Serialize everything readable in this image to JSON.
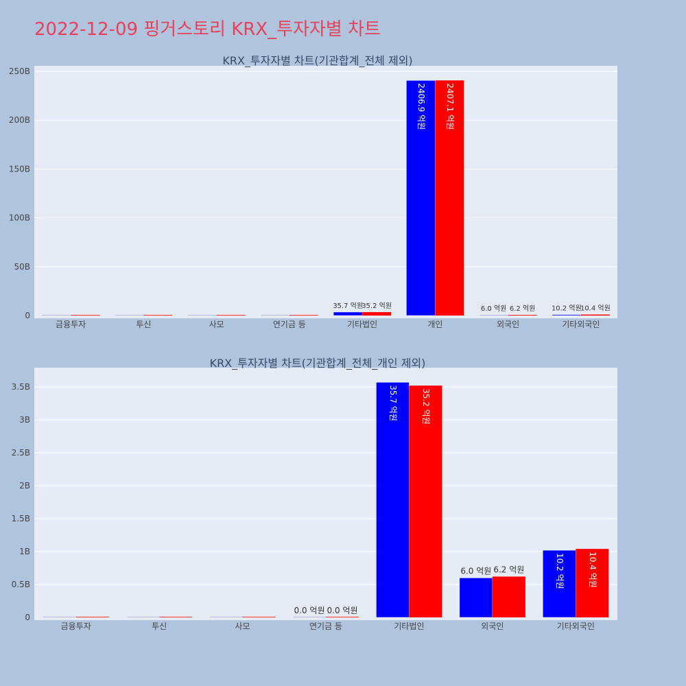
{
  "title": "2022-12-09 핑거스토리 KRX_투자자별 차트",
  "colors": {
    "background": "#b0c4de",
    "plot_bg": "#e5ecf6",
    "sell": "#0000ff",
    "buy": "#ff0000",
    "title": "#e8425a"
  },
  "chart_data": [
    {
      "type": "bar",
      "title": "KRX_투자자별 차트(기관합계_전체 제외)",
      "categories": [
        "금융투자",
        "투신",
        "사모",
        "연기금 등",
        "기타법인",
        "개인",
        "외국인",
        "기타외국인"
      ],
      "ylim": [
        0,
        250
      ],
      "y_unit": "B",
      "yticks": [
        "0",
        "50B",
        "100B",
        "150B",
        "200B",
        "250B"
      ],
      "grid": true,
      "series": [
        {
          "color": "#0000ff",
          "values": [
            0,
            0,
            0,
            0.001,
            3.57,
            240.69,
            0.6,
            1.02
          ],
          "labels": [
            "",
            "",
            "",
            "",
            "35.7 억원",
            "2406.9 억원",
            "6.0 억원",
            "10.2 억원"
          ]
        },
        {
          "color": "#ff0000",
          "values": [
            0,
            0,
            0,
            0.001,
            3.52,
            240.71,
            0.62,
            1.04
          ],
          "labels": [
            "",
            "",
            "",
            "",
            "35.2 억원",
            "2407.1 억원",
            "6.2 억원",
            "10.4 억원"
          ]
        }
      ]
    },
    {
      "type": "bar",
      "title": "KRX_투자자별 차트(기관합계_전체_개인 제외)",
      "categories": [
        "금융투자",
        "투신",
        "사모",
        "연기금 등",
        "기타법인",
        "외국인",
        "기타외국인"
      ],
      "ylim": [
        0,
        3.5
      ],
      "y_unit": "B",
      "yticks": [
        "0",
        "0.5B",
        "1B",
        "1.5B",
        "2B",
        "2.5B",
        "3B",
        "3.5B"
      ],
      "grid": true,
      "series": [
        {
          "color": "#0000ff",
          "values": [
            0,
            0,
            0,
            0.001,
            3.57,
            0.6,
            1.02
          ],
          "labels": [
            "",
            "",
            "",
            "0.0 억원",
            "35.7 억원",
            "6.0 억원",
            "10.2 억원"
          ]
        },
        {
          "color": "#ff0000",
          "values": [
            0,
            0,
            0,
            0.001,
            3.52,
            0.62,
            1.04
          ],
          "labels": [
            "",
            "",
            "",
            "0.0 억원",
            "35.2 억원",
            "6.2 억원",
            "10.4 억원"
          ]
        }
      ]
    }
  ]
}
